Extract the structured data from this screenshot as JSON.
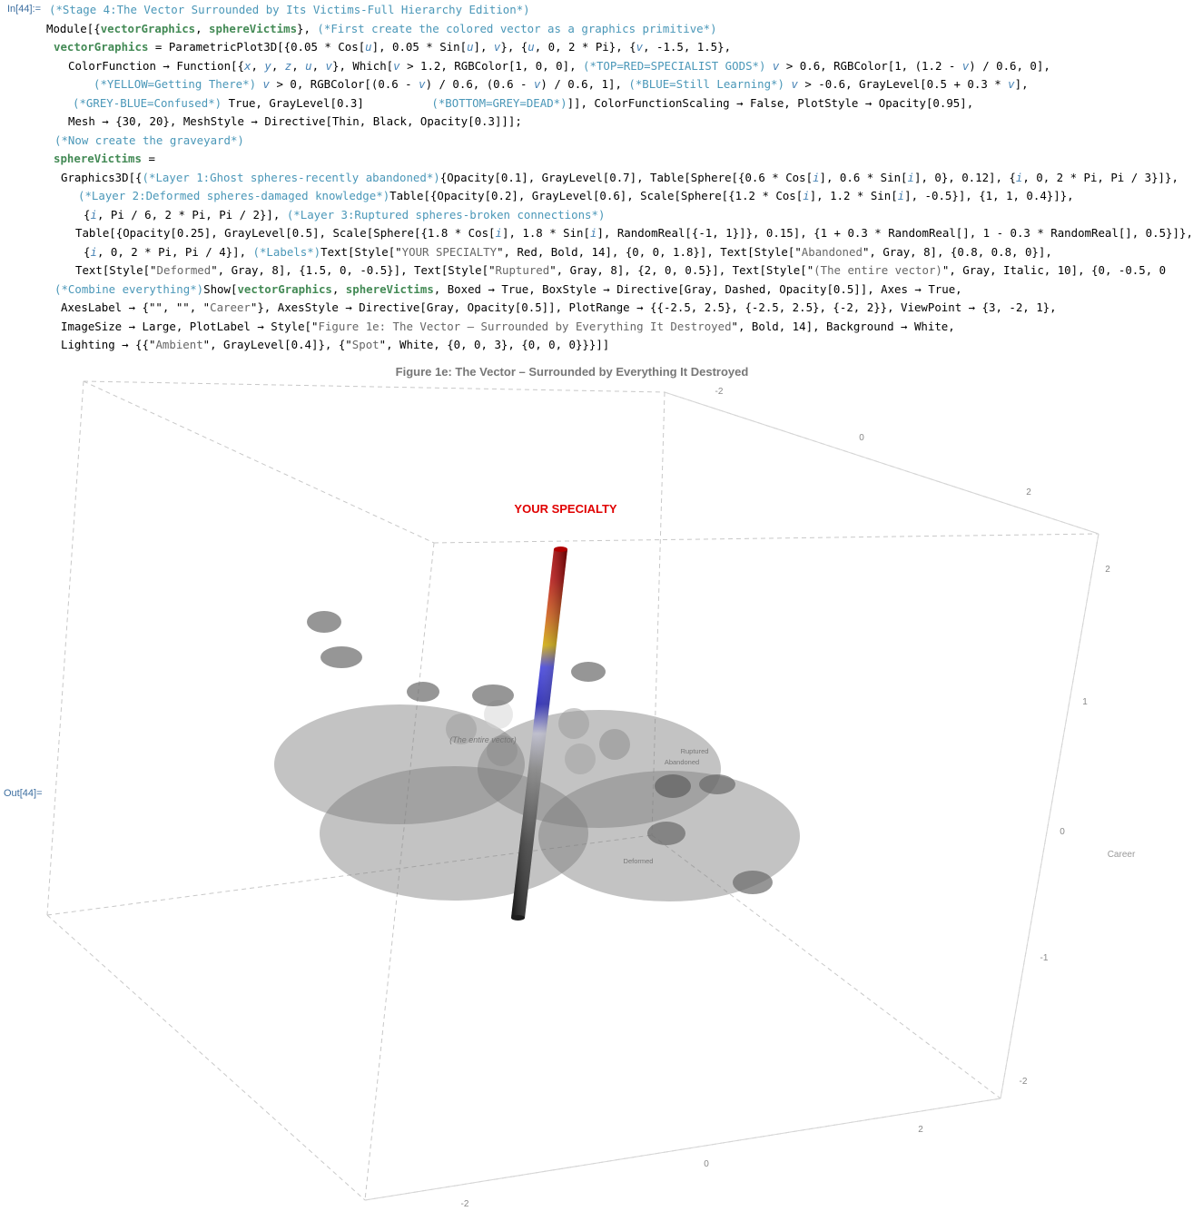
{
  "in_label": "In[44]:=",
  "out_label": "Out[44]=",
  "code_lines": [
    [
      {
        "t": "(*Stage 4:The Vector Surrounded by Its Victims-Full Hierarchy Edition*)",
        "c": "cm"
      }
    ],
    [
      {
        "t": "Module[{",
        "c": "kw"
      },
      {
        "t": "vectorGraphics",
        "c": "gv"
      },
      {
        "t": ", ",
        "c": "kw"
      },
      {
        "t": "sphereVictims",
        "c": "gv"
      },
      {
        "t": "}, ",
        "c": "kw"
      },
      {
        "t": "(*First create the colored vector as a graphics primitive*)",
        "c": "cm"
      }
    ],
    [
      {
        "t": "vectorGraphics",
        "c": "gv"
      },
      {
        "t": " = ParametricPlot3D[{0.05 * Cos[",
        "c": "kw"
      },
      {
        "t": "u",
        "c": "lv"
      },
      {
        "t": "], 0.05 * Sin[",
        "c": "kw"
      },
      {
        "t": "u",
        "c": "lv"
      },
      {
        "t": "], ",
        "c": "kw"
      },
      {
        "t": "v",
        "c": "lv"
      },
      {
        "t": "}, {",
        "c": "kw"
      },
      {
        "t": "u",
        "c": "lv"
      },
      {
        "t": ", 0, 2 * Pi}, {",
        "c": "kw"
      },
      {
        "t": "v",
        "c": "lv"
      },
      {
        "t": ", -1.5, 1.5},",
        "c": "kw"
      }
    ],
    [
      {
        "t": "ColorFunction → Function[{",
        "c": "kw"
      },
      {
        "t": "x",
        "c": "lv"
      },
      {
        "t": ", ",
        "c": "kw"
      },
      {
        "t": "y",
        "c": "lv"
      },
      {
        "t": ", ",
        "c": "kw"
      },
      {
        "t": "z",
        "c": "lv"
      },
      {
        "t": ", ",
        "c": "kw"
      },
      {
        "t": "u",
        "c": "lv"
      },
      {
        "t": ", ",
        "c": "kw"
      },
      {
        "t": "v",
        "c": "lv"
      },
      {
        "t": "}, Which[",
        "c": "kw"
      },
      {
        "t": "v",
        "c": "lv"
      },
      {
        "t": " > 1.2, RGBColor[1, 0, 0], ",
        "c": "kw"
      },
      {
        "t": "(*TOP=RED=SPECIALIST GODS*)",
        "c": "cm"
      },
      {
        "t": " ",
        "c": "kw"
      },
      {
        "t": "v",
        "c": "lv"
      },
      {
        "t": " > 0.6, RGBColor[1, (1.2 - ",
        "c": "kw"
      },
      {
        "t": "v",
        "c": "lv"
      },
      {
        "t": ") / 0.6, 0],",
        "c": "kw"
      }
    ],
    [
      {
        "t": "(*YELLOW=Getting There*)",
        "c": "cm"
      },
      {
        "t": " ",
        "c": "kw"
      },
      {
        "t": "v",
        "c": "lv"
      },
      {
        "t": " > 0, RGBColor[(0.6 - ",
        "c": "kw"
      },
      {
        "t": "v",
        "c": "lv"
      },
      {
        "t": ") / 0.6, (0.6 - ",
        "c": "kw"
      },
      {
        "t": "v",
        "c": "lv"
      },
      {
        "t": ") / 0.6, 1], ",
        "c": "kw"
      },
      {
        "t": "(*BLUE=Still Learning*)",
        "c": "cm"
      },
      {
        "t": " ",
        "c": "kw"
      },
      {
        "t": "v",
        "c": "lv"
      },
      {
        "t": " > -0.6, GrayLevel[0.5 + 0.3 * ",
        "c": "kw"
      },
      {
        "t": "v",
        "c": "lv"
      },
      {
        "t": "],",
        "c": "kw"
      }
    ],
    [
      {
        "t": "(*GREY-BLUE=Confused*)",
        "c": "cm"
      },
      {
        "t": " True, GrayLevel[0.3]          ",
        "c": "kw"
      },
      {
        "t": "(*BOTTOM=GREY=DEAD*)",
        "c": "cm"
      },
      {
        "t": "]], ColorFunctionScaling → False, PlotStyle → Opacity[0.95],",
        "c": "kw"
      }
    ],
    [
      {
        "t": "Mesh → {30, 20}, MeshStyle → Directive[Thin, Black, Opacity[0.3]]];",
        "c": "kw"
      }
    ],
    [
      {
        "t": "(*Now create the graveyard*)",
        "c": "cm"
      }
    ],
    [
      {
        "t": "sphereVictims",
        "c": "gv"
      },
      {
        "t": " =",
        "c": "kw"
      }
    ],
    [
      {
        "t": "Graphics3D[{",
        "c": "kw"
      },
      {
        "t": "(*Layer 1:Ghost spheres-recently abandoned*)",
        "c": "cm"
      },
      {
        "t": "{Opacity[0.1], GrayLevel[0.7], Table[Sphere[{0.6 * Cos[",
        "c": "kw"
      },
      {
        "t": "i",
        "c": "lv"
      },
      {
        "t": "], 0.6 * Sin[",
        "c": "kw"
      },
      {
        "t": "i",
        "c": "lv"
      },
      {
        "t": "], 0}, 0.12], {",
        "c": "kw"
      },
      {
        "t": "i",
        "c": "lv"
      },
      {
        "t": ", 0, 2 * Pi, Pi / 3}]},",
        "c": "kw"
      }
    ],
    [
      {
        "t": "(*Layer 2:Deformed spheres-damaged knowledge*)",
        "c": "cm"
      },
      {
        "t": "Table[{Opacity[0.2], GrayLevel[0.6], Scale[Sphere[{1.2 * Cos[",
        "c": "kw"
      },
      {
        "t": "i",
        "c": "lv"
      },
      {
        "t": "], 1.2 * Sin[",
        "c": "kw"
      },
      {
        "t": "i",
        "c": "lv"
      },
      {
        "t": "], -0.5}], {1, 1, 0.4}]},",
        "c": "kw"
      }
    ],
    [
      {
        "t": "{",
        "c": "kw"
      },
      {
        "t": "i",
        "c": "lv"
      },
      {
        "t": ", Pi / 6, 2 * Pi, Pi / 2}], ",
        "c": "kw"
      },
      {
        "t": "(*Layer 3:Ruptured spheres-broken connections*)",
        "c": "cm"
      }
    ],
    [
      {
        "t": "Table[{Opacity[0.25], GrayLevel[0.5], Scale[Sphere[{1.8 * Cos[",
        "c": "kw"
      },
      {
        "t": "i",
        "c": "lv"
      },
      {
        "t": "], 1.8 * Sin[",
        "c": "kw"
      },
      {
        "t": "i",
        "c": "lv"
      },
      {
        "t": "], RandomReal[{-1, 1}]}, 0.15], {1 + 0.3 * RandomReal[], 1 - 0.3 * RandomReal[], 0.5}]},",
        "c": "kw"
      }
    ],
    [
      {
        "t": "{",
        "c": "kw"
      },
      {
        "t": "i",
        "c": "lv"
      },
      {
        "t": ", 0, 2 * Pi, Pi / 4}], ",
        "c": "kw"
      },
      {
        "t": "(*Labels*)",
        "c": "cm"
      },
      {
        "t": "Text[Style[\"",
        "c": "kw"
      },
      {
        "t": "YOUR SPECIALTY",
        "c": "str"
      },
      {
        "t": "\", Red, Bold, 14], {0, 0, 1.8}], Text[Style[\"",
        "c": "kw"
      },
      {
        "t": "Abandoned",
        "c": "str"
      },
      {
        "t": "\", Gray, 8], {0.8, 0.8, 0}],",
        "c": "kw"
      }
    ],
    [
      {
        "t": "Text[Style[\"",
        "c": "kw"
      },
      {
        "t": "Deformed",
        "c": "str"
      },
      {
        "t": "\", Gray, 8], {1.5, 0, -0.5}], Text[Style[\"",
        "c": "kw"
      },
      {
        "t": "Ruptured",
        "c": "str"
      },
      {
        "t": "\", Gray, 8], {2, 0, 0.5}], Text[Style[\"",
        "c": "kw"
      },
      {
        "t": "(The entire vector)",
        "c": "str"
      },
      {
        "t": "\", Gray, Italic, 10], {0, -0.5, 0",
        "c": "kw"
      }
    ],
    [
      {
        "t": "(*Combine everything*)",
        "c": "cm"
      },
      {
        "t": "Show[",
        "c": "kw"
      },
      {
        "t": "vectorGraphics",
        "c": "gv"
      },
      {
        "t": ", ",
        "c": "kw"
      },
      {
        "t": "sphereVictims",
        "c": "gv"
      },
      {
        "t": ", Boxed → True, BoxStyle → Directive[Gray, Dashed, Opacity[0.5]], Axes → True,",
        "c": "kw"
      }
    ],
    [
      {
        "t": "AxesLabel → {\"\", \"\", \"",
        "c": "kw"
      },
      {
        "t": "Career",
        "c": "str"
      },
      {
        "t": "\"}, AxesStyle → Directive[Gray, Opacity[0.5]], PlotRange → {{-2.5, 2.5}, {-2.5, 2.5}, {-2, 2}}, ViewPoint → {3, -2, 1},",
        "c": "kw"
      }
    ],
    [
      {
        "t": "ImageSize → Large, PlotLabel → Style[\"",
        "c": "kw"
      },
      {
        "t": "Figure 1e: The Vector – Surrounded by Everything It Destroyed",
        "c": "str"
      },
      {
        "t": "\", Bold, 14], Background → White,",
        "c": "kw"
      }
    ],
    [
      {
        "t": "Lighting → {{\"",
        "c": "kw"
      },
      {
        "t": "Ambient",
        "c": "str"
      },
      {
        "t": "\", GrayLevel[0.4]}, {\"",
        "c": "kw"
      },
      {
        "t": "Spot",
        "c": "str"
      },
      {
        "t": "\", White, {0, 0, 3}, {0, 0, 0}}}]]",
        "c": "kw"
      }
    ]
  ],
  "figure": {
    "title": "Figure 1e: The Vector – Surrounded by Everything It Destroyed",
    "label_specialty": "YOUR SPECIALTY",
    "label_entire_vector": "(The entire vector)",
    "label_ruptured": "Ruptured",
    "label_abandoned": "Abandoned",
    "label_deformed": "Deformed",
    "axis_label_career": "Career",
    "top_ticks": [
      "-2",
      "0",
      "2"
    ],
    "right_ticks": [
      "2",
      "1",
      "0",
      "-1",
      "-2"
    ],
    "bottom_ticks": [
      "2",
      "0",
      "-2"
    ]
  }
}
